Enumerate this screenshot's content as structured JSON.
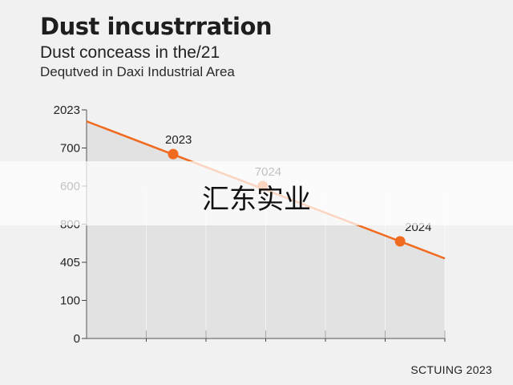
{
  "header": {
    "title": "Dust incustrration",
    "subtitle": "Dust conceass in the/21",
    "subtitle2": "Dequtved in Daxi Industrial Area"
  },
  "footer": {
    "credit": "SCTUING 2023"
  },
  "watermark": {
    "text": "汇东实业"
  },
  "colors": {
    "line": "#f06a1f",
    "fill": "#dcdcdc",
    "grid": "#444444",
    "background": "#f1f1f1"
  },
  "chart_data": {
    "type": "line",
    "title": "Dust incustrration",
    "y_tick_labels": [
      "0",
      "100",
      "405",
      "800",
      "600",
      "700",
      "2023"
    ],
    "y_tick_positions": [
      0,
      1,
      2,
      3,
      4,
      5,
      6
    ],
    "ylim": [
      0,
      6
    ],
    "xlim": [
      0,
      6
    ],
    "x_tick_positions": [
      0,
      1,
      2,
      3,
      4,
      5,
      6
    ],
    "grid": true,
    "series": [
      {
        "x": [
          0,
          6
        ],
        "y": [
          5.7,
          2.1
        ]
      }
    ],
    "points": [
      {
        "x": 1.45,
        "y": 4.84,
        "label": "2023"
      },
      {
        "x": 2.95,
        "y": 4.0,
        "label": "7024"
      },
      {
        "x": 5.25,
        "y": 2.55,
        "label": "2024"
      }
    ]
  }
}
